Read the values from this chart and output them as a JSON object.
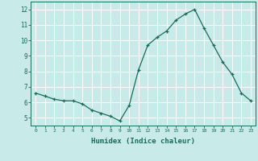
{
  "x": [
    0,
    1,
    2,
    3,
    4,
    5,
    6,
    7,
    8,
    9,
    10,
    11,
    12,
    13,
    14,
    15,
    16,
    17,
    18,
    19,
    20,
    21,
    22,
    23
  ],
  "y": [
    6.6,
    6.4,
    6.2,
    6.1,
    6.1,
    5.9,
    5.5,
    5.3,
    5.1,
    4.8,
    5.8,
    8.1,
    9.7,
    10.2,
    10.6,
    11.3,
    11.7,
    12.0,
    10.8,
    9.7,
    8.6,
    7.8,
    6.6,
    6.1
  ],
  "line_color": "#1a6b5a",
  "marker": "+",
  "marker_size": 3,
  "bg_color": "#c8eae8",
  "grid_color": "#ffffff",
  "xlabel": "Humidex (Indice chaleur)",
  "xlabel_color": "#1a6b5a",
  "tick_color": "#1a6b5a",
  "ylim": [
    4.5,
    12.5
  ],
  "xlim": [
    -0.5,
    23.5
  ],
  "yticks": [
    5,
    6,
    7,
    8,
    9,
    10,
    11,
    12
  ],
  "xticks": [
    0,
    1,
    2,
    3,
    4,
    5,
    6,
    7,
    8,
    9,
    10,
    11,
    12,
    13,
    14,
    15,
    16,
    17,
    18,
    19,
    20,
    21,
    22,
    23
  ]
}
